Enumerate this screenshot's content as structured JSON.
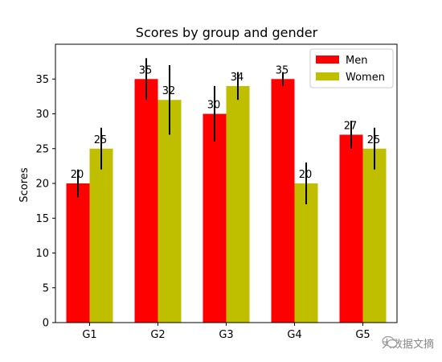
{
  "chart_data": {
    "type": "bar",
    "title": "Scores by group and gender",
    "xlabel": "",
    "ylabel": "Scores",
    "categories": [
      "G1",
      "G2",
      "G3",
      "G4",
      "G5"
    ],
    "ylim": [
      0,
      40
    ],
    "yticks": [
      0,
      5,
      10,
      15,
      20,
      25,
      30,
      35
    ],
    "series": [
      {
        "name": "Men",
        "color": "#ff0000",
        "values": [
          20,
          35,
          30,
          35,
          27
        ],
        "errors": [
          2,
          3,
          4,
          1,
          2
        ]
      },
      {
        "name": "Women",
        "color": "#bfbf00",
        "values": [
          25,
          32,
          34,
          20,
          25
        ],
        "errors": [
          3,
          5,
          2,
          3,
          3
        ]
      }
    ],
    "legend": "top-right",
    "grid": false
  },
  "watermark": {
    "text": "大数据文摘"
  }
}
